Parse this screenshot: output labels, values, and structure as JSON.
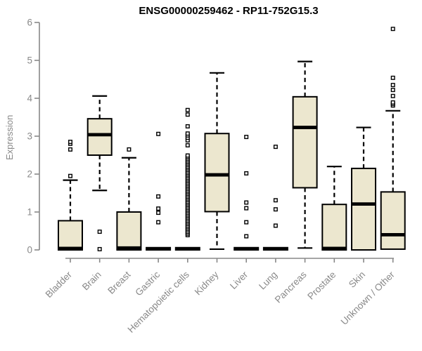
{
  "chart_data": {
    "type": "boxplot",
    "title": "ENSG00000259462 - RP11-752G15.3",
    "ylabel": "Expression",
    "xlabel": "",
    "ylim": [
      0,
      6
    ],
    "y_ticks": [
      0,
      1,
      2,
      3,
      4,
      5,
      6
    ],
    "grid": false,
    "legend": "none",
    "box_fill": "#ece7cf",
    "axis_color": "#898989",
    "data_color": "#000000",
    "categories": [
      {
        "label": "Bladder",
        "q1": 0,
        "median": 0.04,
        "q3": 0.77,
        "whisker_low": null,
        "whisker_high": 1.84,
        "outliers": [
          1.95,
          2.65,
          2.8,
          2.85
        ]
      },
      {
        "label": "Brain",
        "q1": 2.5,
        "median": 3.04,
        "q3": 3.46,
        "whisker_low": 1.57,
        "whisker_high": 4.06,
        "outliers": [
          0.02,
          0.48
        ]
      },
      {
        "label": "Breast",
        "q1": 0,
        "median": 0.05,
        "q3": 1.0,
        "whisker_low": null,
        "whisker_high": 2.43,
        "outliers": [
          2.65
        ]
      },
      {
        "label": "Gastric",
        "q1": 0,
        "median": 0.03,
        "q3": 0.06,
        "whisker_low": null,
        "whisker_high": null,
        "outliers": [
          0.73,
          0.98,
          1.09,
          1.41,
          3.06
        ]
      },
      {
        "label": "Hematopoietic cells",
        "q1": 0,
        "median": 0.03,
        "q3": 0.06,
        "whisker_low": null,
        "whisker_high": null,
        "outliers": [
          2.76,
          2.89,
          2.96,
          3.02,
          3.07,
          3.26,
          3.57,
          3.69
        ],
        "outlier_column": {
          "from": 0.39,
          "to": 2.49,
          "step": 0.042
        }
      },
      {
        "label": "Kidney",
        "q1": 1.01,
        "median": 1.98,
        "q3": 3.07,
        "whisker_low": 0.02,
        "whisker_high": 4.67,
        "outliers": []
      },
      {
        "label": "Liver",
        "q1": 0,
        "median": 0.03,
        "q3": 0.06,
        "whisker_low": null,
        "whisker_high": null,
        "outliers": [
          0.36,
          0.73,
          1.1,
          1.25,
          2.02,
          2.98
        ]
      },
      {
        "label": "Lung",
        "q1": 0,
        "median": 0.03,
        "q3": 0.06,
        "whisker_low": null,
        "whisker_high": null,
        "outliers": [
          0.64,
          1.07,
          1.31,
          2.72
        ]
      },
      {
        "label": "Pancreas",
        "q1": 1.64,
        "median": 3.23,
        "q3": 4.04,
        "whisker_low": 0.05,
        "whisker_high": 4.97,
        "outliers": []
      },
      {
        "label": "Prostate",
        "q1": 0,
        "median": 0.04,
        "q3": 1.2,
        "whisker_low": null,
        "whisker_high": 2.2,
        "outliers": []
      },
      {
        "label": "Skin",
        "q1": 0,
        "median": 1.21,
        "q3": 2.15,
        "whisker_low": null,
        "whisker_high": 3.23,
        "outliers": []
      },
      {
        "label": "Unknown / Other",
        "q1": 0.02,
        "median": 0.4,
        "q3": 1.53,
        "whisker_low": null,
        "whisker_high": 3.67,
        "outliers": [
          3.81,
          3.85,
          3.89,
          4.06,
          4.22,
          4.35,
          4.54,
          5.83
        ]
      }
    ]
  }
}
